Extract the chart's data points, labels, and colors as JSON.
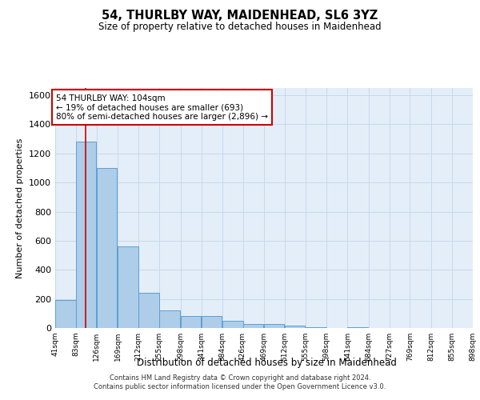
{
  "title": "54, THURLBY WAY, MAIDENHEAD, SL6 3YZ",
  "subtitle": "Size of property relative to detached houses in Maidenhead",
  "xlabel": "Distribution of detached houses by size in Maidenhead",
  "ylabel": "Number of detached properties",
  "footer_line1": "Contains HM Land Registry data © Crown copyright and database right 2024.",
  "footer_line2": "Contains public sector information licensed under the Open Government Licence v3.0.",
  "annotation_line1": "54 THURLBY WAY: 104sqm",
  "annotation_line2": "← 19% of detached houses are smaller (693)",
  "annotation_line3": "80% of semi-detached houses are larger (2,896) →",
  "bar_color": "#aecde8",
  "bar_edge_color": "#5b9fd4",
  "grid_color": "#c5d8eb",
  "background_color": "#e4eef8",
  "red_line_color": "#cc0000",
  "annotation_box_color": "#ffffff",
  "annotation_box_edge": "#cc0000",
  "bins": [
    41,
    83,
    126,
    169,
    212,
    255,
    298,
    341,
    384,
    426,
    469,
    512,
    555,
    598,
    641,
    684,
    727,
    769,
    812,
    855,
    898
  ],
  "values": [
    190,
    1280,
    1100,
    560,
    240,
    120,
    85,
    80,
    50,
    30,
    25,
    18,
    8,
    0,
    4,
    0,
    0,
    0,
    0,
    0
  ],
  "red_line_x": 104,
  "ylim": [
    0,
    1650
  ],
  "yticks": [
    0,
    200,
    400,
    600,
    800,
    1000,
    1200,
    1400,
    1600
  ]
}
